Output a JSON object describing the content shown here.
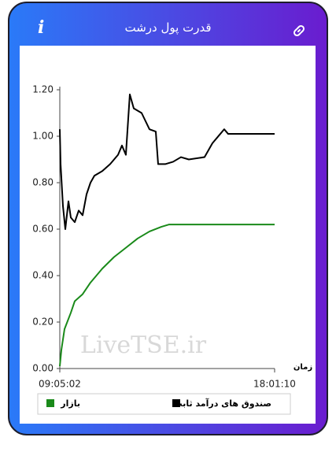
{
  "header": {
    "title": "قدرت پول درشت",
    "info": "i"
  },
  "watermark": "LiveTSE.ir",
  "chart_data": {
    "type": "line",
    "xlabel": "زمان",
    "xlim": [
      "09:05:02",
      "18:01:10"
    ],
    "xticks": [
      "09:05:02",
      "18:01:10"
    ],
    "ylim": [
      0,
      1.2
    ],
    "yticks": [
      {
        "value": 0,
        "label": "0.00"
      },
      {
        "value": 0.2,
        "label": "0.20"
      },
      {
        "value": 0.4,
        "label": "0.40"
      },
      {
        "value": 0.6,
        "label": "0.60"
      },
      {
        "value": 0.8,
        "label": "0.80"
      },
      {
        "value": 1,
        "label": "1.00"
      },
      {
        "value": 1.2,
        "label": "1.20"
      }
    ],
    "grid": false,
    "series": [
      {
        "name": "صندوق های درآمد ثابت",
        "color": "#000000",
        "x": [
          "09:05:02",
          "09:07:00",
          "09:12:53",
          "09:18:47",
          "09:26:38",
          "09:32:31",
          "09:42:20",
          "09:52:09",
          "10:01:58",
          "10:11:47",
          "10:21:36",
          "10:31:25",
          "10:51:03",
          "11:10:41",
          "11:30:19",
          "11:40:08",
          "11:49:57",
          "11:59:46",
          "12:09:35",
          "12:29:13",
          "12:48:51",
          "13:04:33",
          "13:10:27",
          "13:28:07",
          "13:47:45",
          "14:07:23",
          "14:27:01",
          "15:06:17",
          "15:25:55",
          "15:45:33",
          "15:55:22",
          "16:05:11",
          "18:01:10"
        ],
        "values": [
          1.03,
          0.88,
          0.7,
          0.6,
          0.72,
          0.65,
          0.63,
          0.68,
          0.66,
          0.75,
          0.8,
          0.83,
          0.85,
          0.88,
          0.92,
          0.96,
          0.92,
          1.18,
          1.12,
          1.1,
          1.03,
          1.02,
          0.88,
          0.88,
          0.89,
          0.91,
          0.9,
          0.91,
          0.97,
          1.01,
          1.03,
          1.01,
          1.01
        ]
      },
      {
        "name": "بازار",
        "color": "#1a8a1a",
        "x": [
          "09:05:02",
          "09:08:58",
          "09:16:49",
          "09:32:31",
          "09:42:20",
          "10:01:58",
          "10:21:36",
          "10:51:03",
          "11:20:30",
          "11:49:57",
          "12:19:24",
          "12:48:51",
          "13:18:18",
          "13:37:56",
          "18:01:10"
        ],
        "values": [
          0.01,
          0.08,
          0.17,
          0.24,
          0.29,
          0.32,
          0.37,
          0.43,
          0.48,
          0.52,
          0.56,
          0.59,
          0.61,
          0.62,
          0.62
        ]
      }
    ]
  }
}
